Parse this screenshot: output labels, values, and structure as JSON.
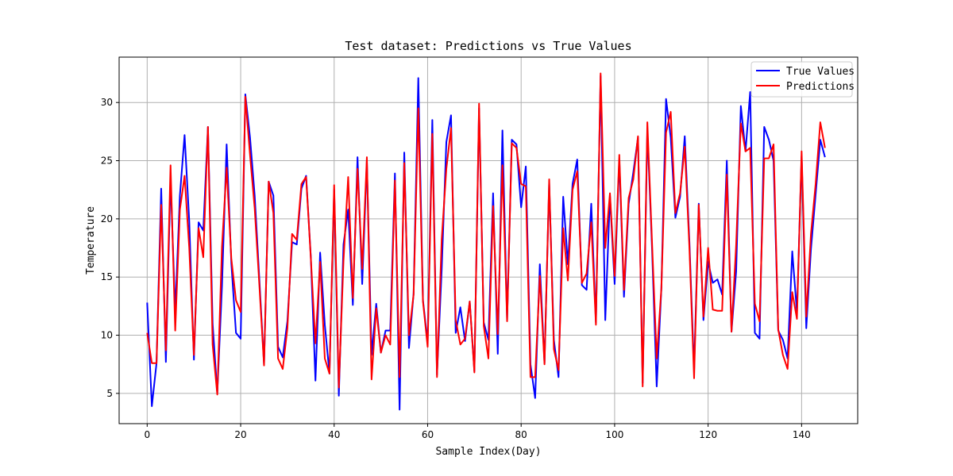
{
  "chart_data": {
    "type": "line",
    "title": "Test dataset: Predictions vs True Values",
    "xlabel": "Sample Index(Day)",
    "ylabel": "Temperature",
    "xlim": [
      -6,
      152
    ],
    "ylim": [
      2.4,
      33.9
    ],
    "xticks": [
      0,
      20,
      40,
      60,
      80,
      100,
      120,
      140
    ],
    "yticks": [
      5,
      10,
      15,
      20,
      25,
      30
    ],
    "grid": true,
    "legend_position": "top-right",
    "series": [
      {
        "name": "True Values",
        "color": "#0000ff",
        "values": [
          12.8,
          3.9,
          7.6,
          22.6,
          7.7,
          23.5,
          12.0,
          22.0,
          27.2,
          19.8,
          7.9,
          19.7,
          19.0,
          27.9,
          11.0,
          5.0,
          14.2,
          26.4,
          16.2,
          10.2,
          9.7,
          30.7,
          27.0,
          22.0,
          14.8,
          7.5,
          23.2,
          22.0,
          9.0,
          8.1,
          11.2,
          18.0,
          17.8,
          22.6,
          23.7,
          16.8,
          6.1,
          17.1,
          10.9,
          6.7,
          22.5,
          4.8,
          17.8,
          20.8,
          12.6,
          25.3,
          14.4,
          25.0,
          8.3,
          12.7,
          8.5,
          10.4,
          10.4,
          23.9,
          3.6,
          25.7,
          8.9,
          13.6,
          32.1,
          13.0,
          9.4,
          28.5,
          6.6,
          15.6,
          26.6,
          28.9,
          10.2,
          12.4,
          9.5,
          12.9,
          6.9,
          29.5,
          11.1,
          9.6,
          22.2,
          8.4,
          27.6,
          11.3,
          26.8,
          26.4,
          21.0,
          24.5,
          7.5,
          4.6,
          16.1,
          7.6,
          23.1,
          9.6,
          6.4,
          21.9,
          16.1,
          23.0,
          25.1,
          14.3,
          13.9,
          21.3,
          11.1,
          32.3,
          11.3,
          22.0,
          14.4,
          25.1,
          13.3,
          21.3,
          24.0,
          27.0,
          5.9,
          27.7,
          17.5,
          5.6,
          14.0,
          30.3,
          27.0,
          20.1,
          21.9,
          27.1,
          18.0,
          7.0,
          21.3,
          11.3,
          16.3,
          14.5,
          14.8,
          13.5,
          25.0,
          10.3,
          15.5,
          29.7,
          25.8,
          30.9,
          10.2,
          9.7,
          27.9,
          26.8,
          25.0,
          10.4,
          9.6,
          8.0,
          17.2,
          12.0,
          25.4,
          10.6,
          17.4,
          22.1,
          26.8,
          25.3
        ]
      },
      {
        "name": "Predictions",
        "color": "#ff0000",
        "values": [
          10.2,
          7.6,
          7.6,
          21.2,
          8.7,
          24.6,
          10.4,
          20.8,
          23.7,
          17.5,
          8.3,
          19.2,
          16.7,
          27.9,
          9.2,
          4.9,
          17.6,
          24.4,
          16.6,
          13.0,
          12.0,
          30.5,
          25.5,
          20.9,
          14.3,
          7.4,
          23.2,
          20.5,
          8.0,
          7.1,
          10.6,
          18.7,
          18.2,
          23.0,
          23.6,
          16.7,
          9.3,
          16.3,
          8.0,
          6.7,
          22.9,
          5.5,
          16.4,
          23.6,
          13.2,
          24.3,
          15.7,
          25.3,
          6.2,
          12.3,
          8.5,
          10.0,
          9.2,
          23.3,
          6.4,
          24.8,
          10.0,
          13.5,
          29.5,
          12.9,
          9.0,
          27.3,
          6.4,
          18.2,
          24.3,
          27.8,
          11.3,
          9.2,
          9.7,
          12.9,
          6.8,
          29.9,
          10.8,
          8.0,
          21.1,
          10.1,
          24.6,
          11.2,
          26.5,
          26.1,
          23.0,
          22.8,
          6.4,
          6.4,
          15.1,
          7.5,
          23.4,
          8.8,
          7.0,
          19.2,
          14.7,
          22.5,
          24.1,
          14.5,
          15.3,
          19.7,
          10.9,
          32.5,
          17.5,
          22.2,
          15.1,
          25.5,
          13.9,
          21.8,
          23.4,
          27.1,
          5.6,
          28.3,
          18.0,
          8.0,
          14.0,
          27.4,
          29.2,
          20.5,
          22.2,
          26.2,
          17.5,
          6.3,
          21.2,
          11.6,
          17.5,
          12.2,
          12.1,
          12.1,
          23.8,
          10.3,
          17.8,
          28.2,
          25.8,
          26.1,
          12.7,
          11.2,
          25.2,
          25.2,
          26.4,
          10.5,
          8.3,
          7.1,
          13.7,
          11.4,
          25.8,
          11.6,
          18.7,
          23.0,
          28.3,
          26.1
        ]
      }
    ]
  }
}
